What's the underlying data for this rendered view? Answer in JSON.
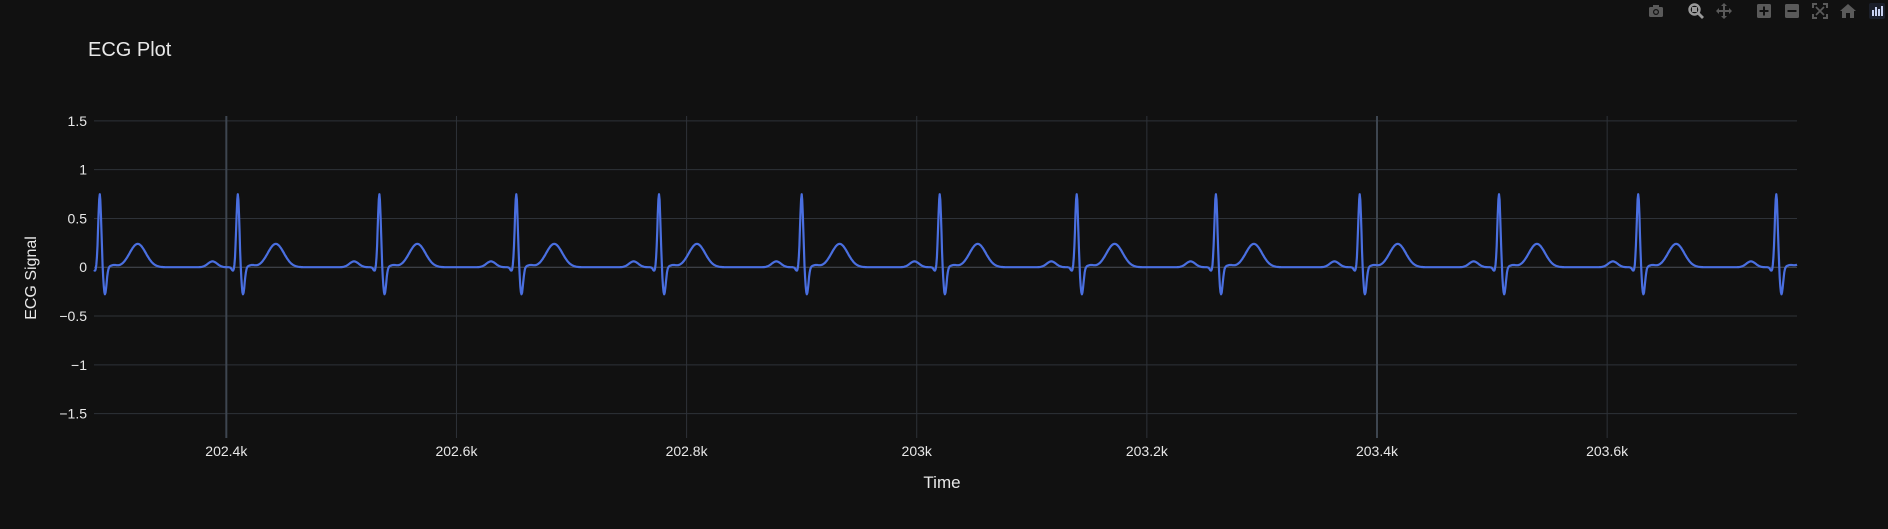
{
  "chart_data": {
    "type": "line",
    "title": "ECG Plot",
    "xlabel": "Time",
    "ylabel": "ECG Signal",
    "xlim": [
      202285,
      203765
    ],
    "ylim": [
      -1.75,
      1.55
    ],
    "x_ticks": [
      {
        "value": 202400,
        "label": "202.4k"
      },
      {
        "value": 202600,
        "label": "202.6k"
      },
      {
        "value": 202800,
        "label": "202.8k"
      },
      {
        "value": 203000,
        "label": "203k"
      },
      {
        "value": 203200,
        "label": "203.2k"
      },
      {
        "value": 203400,
        "label": "203.4k"
      },
      {
        "value": 203600,
        "label": "203.6k"
      }
    ],
    "y_ticks": [
      {
        "value": 1.5,
        "label": "1.5"
      },
      {
        "value": 1,
        "label": "1"
      },
      {
        "value": 0.5,
        "label": "0.5"
      },
      {
        "value": 0,
        "label": "0"
      },
      {
        "value": -0.5,
        "label": "−0.5"
      },
      {
        "value": -1,
        "label": "−1"
      },
      {
        "value": -1.5,
        "label": "−1.5"
      }
    ],
    "grid": true,
    "highlighted_gridlines_x": [
      202400,
      203400
    ],
    "beat_r_peak_times": [
      202290,
      202410,
      202533,
      202652,
      202776,
      202900,
      203020,
      203139,
      203260,
      203385,
      203506,
      203627,
      203747
    ],
    "r_peak_amplitude": 0.75,
    "s_wave_amplitude": -0.28,
    "t_wave_amplitude": 0.24,
    "p_wave_amplitude": 0.06,
    "series": [
      {
        "color": "#4a6fe0"
      }
    ]
  },
  "colors": {
    "background": "#111111",
    "grid": "#2e3238",
    "grid_highlight": "#3e4650",
    "text": "#e8e8e8",
    "line": "#4a6fe0",
    "modebar_icon": "#5a5a5a"
  },
  "modebar": {
    "icons": [
      "camera-icon",
      "zoom-icon",
      "pan-icon",
      "zoom-in-icon",
      "zoom-out-icon",
      "autoscale-icon",
      "home-icon",
      "plotly-logo-icon"
    ]
  }
}
